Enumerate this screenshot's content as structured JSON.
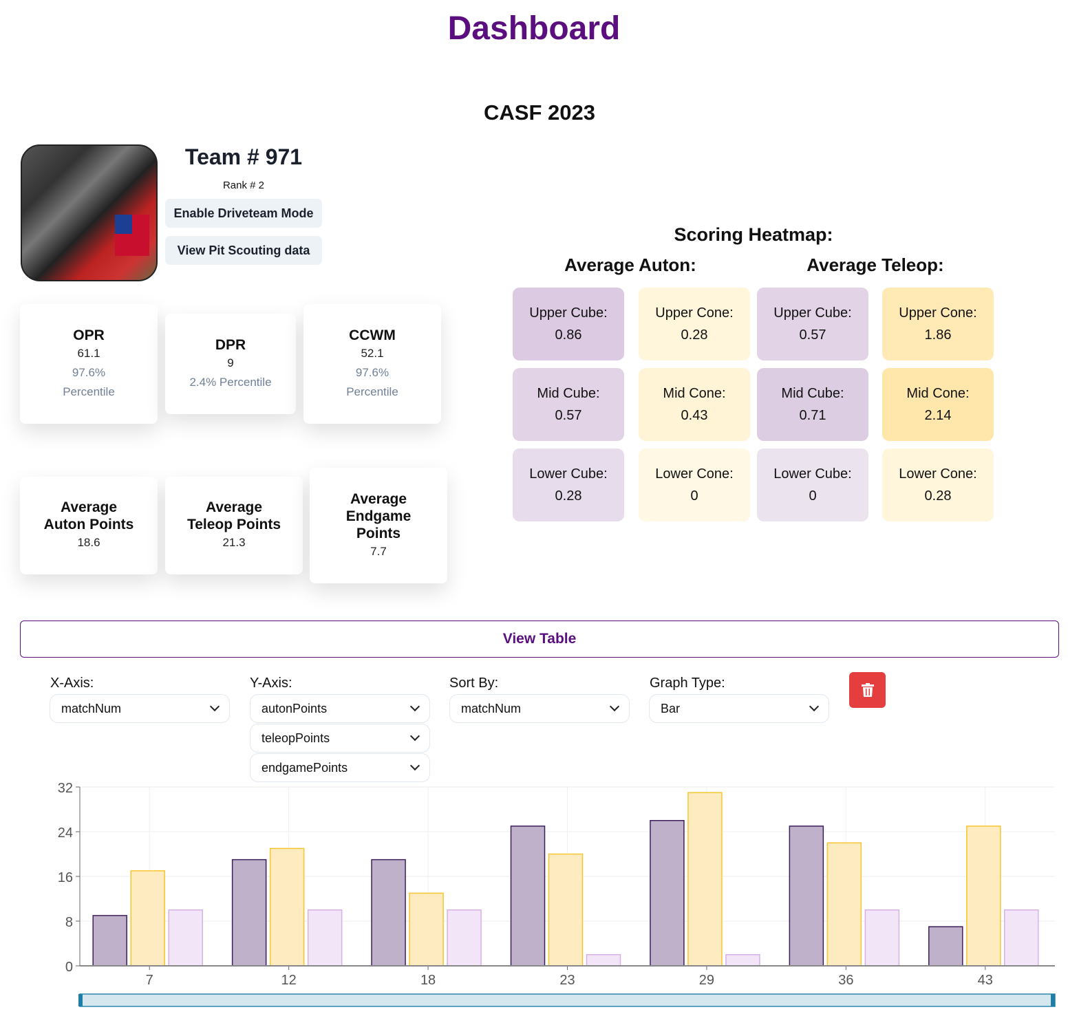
{
  "header": {
    "title": "Dashboard",
    "event": "CASF 2023"
  },
  "team": {
    "number": "Team # 971",
    "rank": "Rank # 2",
    "driveteam_button": "Enable Driveteam Mode",
    "pit_button": "View Pit Scouting data"
  },
  "stats": [
    {
      "label": "OPR",
      "value": "61.1",
      "percentile": "97.6%",
      "percentile_label": "Percentile"
    },
    {
      "label": "DPR",
      "value": "9",
      "percentile": "2.4% Percentile"
    },
    {
      "label": "CCWM",
      "value": "52.1",
      "percentile": "97.6%",
      "percentile_label": "Percentile"
    }
  ],
  "averages": [
    {
      "label": "Average Auton Points",
      "value": "18.6"
    },
    {
      "label": "Average Teleop Points",
      "value": "21.3"
    },
    {
      "label": "Average Endgame Points",
      "value": "7.7"
    }
  ],
  "heatmap": {
    "title": "Scoring Heatmap:",
    "auton_title": "Average Auton:",
    "teleop_title": "Average Teleop:",
    "cells": [
      {
        "label": "Upper Cube:",
        "value": "0.86",
        "color": "#dccae2"
      },
      {
        "label": "Upper Cone:",
        "value": "0.28",
        "color": "#fff6dc"
      },
      {
        "label": "Upper Cube:",
        "value": "0.57",
        "color": "#e2d3e6"
      },
      {
        "label": "Upper Cone:",
        "value": "1.86",
        "color": "#ffe9b5"
      },
      {
        "label": "Mid Cube:",
        "value": "0.57",
        "color": "#e2d3e6"
      },
      {
        "label": "Mid Cone:",
        "value": "0.43",
        "color": "#fff4d5"
      },
      {
        "label": "Mid Cube:",
        "value": "0.71",
        "color": "#ddcde3"
      },
      {
        "label": "Mid Cone:",
        "value": "2.14",
        "color": "#ffe7ab"
      },
      {
        "label": "Lower Cube:",
        "value": "0.28",
        "color": "#e7dceb"
      },
      {
        "label": "Lower Cone:",
        "value": "0",
        "color": "#fff8e4"
      },
      {
        "label": "Lower Cube:",
        "value": "0",
        "color": "#ebe3ee"
      },
      {
        "label": "Lower Cone:",
        "value": "0.28",
        "color": "#fff6dc"
      }
    ]
  },
  "view_table": "View Table",
  "controls": {
    "x_label": "X-Axis:",
    "x_value": "matchNum",
    "y_label": "Y-Axis:",
    "y_values": [
      "autonPoints",
      "teleopPoints",
      "endgamePoints"
    ],
    "sort_label": "Sort By:",
    "sort_value": "matchNum",
    "type_label": "Graph Type:",
    "type_value": "Bar",
    "delete_icon": "trash-icon"
  },
  "chart_data": {
    "type": "bar",
    "categories": [
      "7",
      "12",
      "18",
      "23",
      "29",
      "36",
      "43"
    ],
    "series": [
      {
        "name": "autonPoints",
        "values": [
          9,
          19,
          19,
          25,
          26,
          25,
          7
        ],
        "fill": "#bfb1c9",
        "stroke": "#3d1f5c"
      },
      {
        "name": "teleopPoints",
        "values": [
          17,
          21,
          13,
          20,
          31,
          22,
          25
        ],
        "fill": "#feebc0",
        "stroke": "#f7c531"
      },
      {
        "name": "endgamePoints",
        "values": [
          10,
          10,
          10,
          2,
          2,
          10,
          10
        ],
        "fill": "#f3e5f8",
        "stroke": "#d5b1e6"
      }
    ],
    "ylim": [
      0,
      32
    ],
    "yticks": [
      "0",
      "8",
      "16",
      "24",
      "32"
    ],
    "grid": true
  }
}
